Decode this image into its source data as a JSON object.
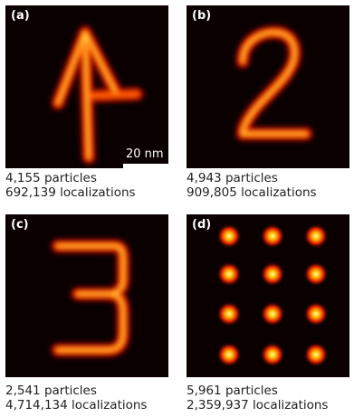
{
  "panels": [
    {
      "label": "(a)",
      "particles": "4,155 particles",
      "localizations": "692,139 localizations"
    },
    {
      "label": "(b)",
      "particles": "4,943 particles",
      "localizations": "909,805 localizations"
    },
    {
      "label": "(c)",
      "particles": "2,541 particles",
      "localizations": "4,714,134 localizations"
    },
    {
      "label": "(d)",
      "particles": "5,961 particles",
      "localizations": "2,359,937 localizations"
    }
  ],
  "scale_bar": {
    "label": "20 nm"
  },
  "colors": {
    "background": "#0a0000",
    "hot_core": "#ffff66",
    "hot_mid": "#ff6a00",
    "hot_edge": "#b30000"
  }
}
